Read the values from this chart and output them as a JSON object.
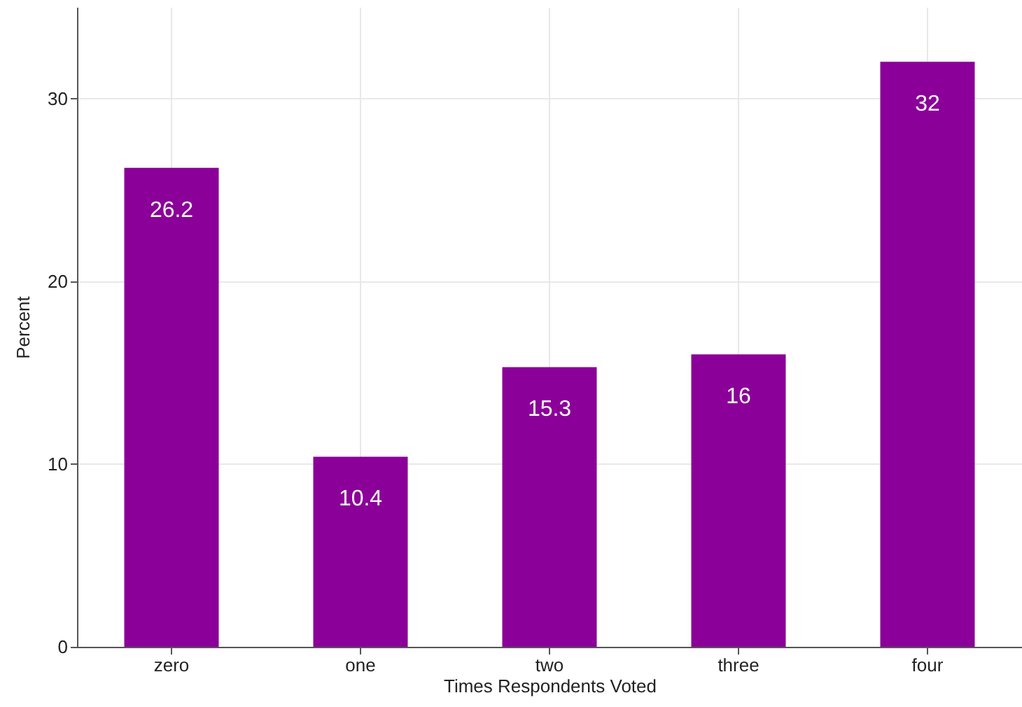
{
  "chart_data": {
    "type": "bar",
    "xlabel": "Times Respondents Voted",
    "ylabel": "Percent",
    "categories": [
      "zero",
      "one",
      "two",
      "three",
      "four"
    ],
    "values": [
      26.2,
      10.4,
      15.3,
      16,
      32
    ],
    "color": "#8b0099",
    "ylim": [
      0,
      35
    ],
    "yticks": [
      0,
      10,
      20,
      30
    ],
    "grid": true,
    "data_labels": true
  }
}
